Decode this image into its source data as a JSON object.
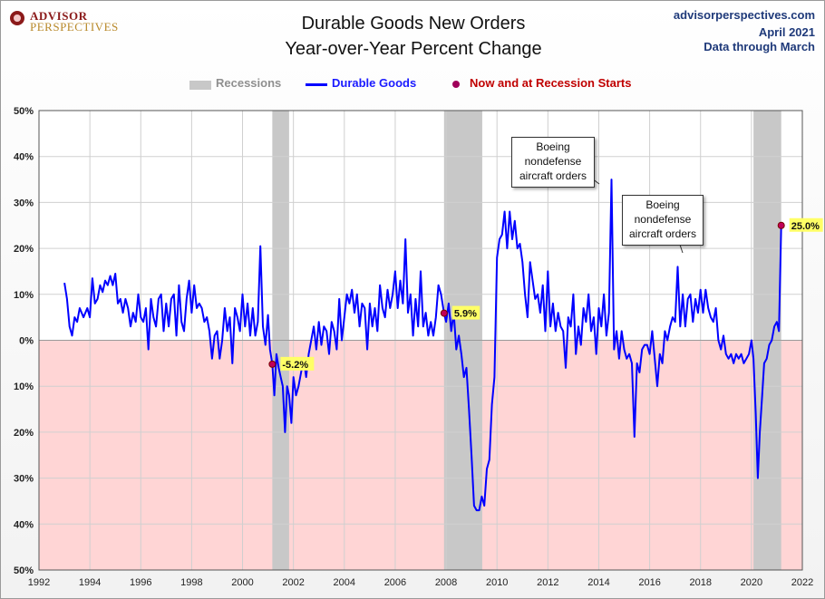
{
  "logo": {
    "line1": "ADVISOR",
    "line2": "PERSPECTIVES"
  },
  "header": {
    "title_line1": "Durable Goods New Orders",
    "title_line2": "Year-over-Year Percent Change",
    "site": "advisorperspectives.com",
    "date": "April 2021",
    "note": "Data through March"
  },
  "legend": {
    "recessions": "Recessions",
    "series": "Durable Goods",
    "points": "Now and at Recession Starts"
  },
  "callouts": [
    {
      "lines": [
        "Boeing",
        "nondefense",
        "aircraft orders"
      ]
    },
    {
      "lines": [
        "Boeing",
        "nondefense",
        "aircraft orders"
      ]
    }
  ],
  "colors": {
    "line": "#0000ff",
    "recession": "#c8c8c8",
    "negative_region": "#ffd5d5",
    "marker": "#c0005a",
    "label_bg": "#ffff66"
  },
  "chart_data": {
    "type": "line",
    "title": "Durable Goods New Orders Year-over-Year Percent Change",
    "xlim": [
      1992,
      2022
    ],
    "ylim": [
      -50,
      50
    ],
    "x_ticks": [
      1992,
      1994,
      1996,
      1998,
      2000,
      2002,
      2004,
      2006,
      2008,
      2010,
      2012,
      2014,
      2016,
      2018,
      2020,
      2022
    ],
    "y_ticks": [
      50,
      40,
      30,
      20,
      10,
      0,
      -10,
      -20,
      -30,
      -40,
      -50
    ],
    "y_tick_labels": [
      "50%",
      "40%",
      "30%",
      "20%",
      "10%",
      "0%",
      "10%",
      "20%",
      "30%",
      "40%",
      "50%"
    ],
    "grid": true,
    "recessions": [
      [
        2001.17,
        2001.83
      ],
      [
        2007.92,
        2009.42
      ],
      [
        2020.08,
        2021.17
      ]
    ],
    "series": [
      {
        "name": "Durable Goods",
        "points": [
          [
            1993.0,
            12.5
          ],
          [
            1993.1,
            9
          ],
          [
            1993.2,
            3
          ],
          [
            1993.3,
            1
          ],
          [
            1993.4,
            5
          ],
          [
            1993.5,
            4
          ],
          [
            1993.6,
            7
          ],
          [
            1993.75,
            5
          ],
          [
            1993.9,
            7
          ],
          [
            1994.0,
            5
          ],
          [
            1994.1,
            13.5
          ],
          [
            1994.2,
            8
          ],
          [
            1994.3,
            9
          ],
          [
            1994.4,
            12
          ],
          [
            1994.5,
            10.5
          ],
          [
            1994.6,
            13
          ],
          [
            1994.7,
            12
          ],
          [
            1994.8,
            14
          ],
          [
            1994.9,
            12
          ],
          [
            1995.0,
            14.5
          ],
          [
            1995.1,
            8
          ],
          [
            1995.2,
            9
          ],
          [
            1995.3,
            6
          ],
          [
            1995.4,
            9
          ],
          [
            1995.5,
            7
          ],
          [
            1995.6,
            3
          ],
          [
            1995.7,
            6
          ],
          [
            1995.8,
            4
          ],
          [
            1995.9,
            10
          ],
          [
            1996.0,
            5
          ],
          [
            1996.1,
            4
          ],
          [
            1996.2,
            7
          ],
          [
            1996.3,
            -2
          ],
          [
            1996.4,
            9
          ],
          [
            1996.5,
            5
          ],
          [
            1996.6,
            3
          ],
          [
            1996.7,
            9
          ],
          [
            1996.8,
            10
          ],
          [
            1996.9,
            2
          ],
          [
            1997.0,
            8
          ],
          [
            1997.1,
            3
          ],
          [
            1997.2,
            9
          ],
          [
            1997.3,
            10
          ],
          [
            1997.4,
            1
          ],
          [
            1997.5,
            12
          ],
          [
            1997.6,
            4
          ],
          [
            1997.7,
            2
          ],
          [
            1997.8,
            9
          ],
          [
            1997.9,
            13
          ],
          [
            1998.0,
            6
          ],
          [
            1998.1,
            12
          ],
          [
            1998.2,
            7
          ],
          [
            1998.3,
            8
          ],
          [
            1998.4,
            7
          ],
          [
            1998.5,
            4
          ],
          [
            1998.6,
            5
          ],
          [
            1998.7,
            2
          ],
          [
            1998.8,
            -4
          ],
          [
            1998.9,
            1
          ],
          [
            1999.0,
            2
          ],
          [
            1999.1,
            -4
          ],
          [
            1999.2,
            0
          ],
          [
            1999.3,
            7
          ],
          [
            1999.4,
            2
          ],
          [
            1999.5,
            5
          ],
          [
            1999.6,
            -5
          ],
          [
            1999.7,
            7
          ],
          [
            1999.8,
            5
          ],
          [
            1999.9,
            2
          ],
          [
            2000.0,
            10
          ],
          [
            2000.1,
            3
          ],
          [
            2000.2,
            8
          ],
          [
            2000.3,
            1
          ],
          [
            2000.4,
            7
          ],
          [
            2000.5,
            1
          ],
          [
            2000.6,
            4
          ],
          [
            2000.7,
            20.5
          ],
          [
            2000.8,
            3
          ],
          [
            2000.9,
            -1
          ],
          [
            2001.0,
            5.5
          ],
          [
            2001.08,
            -2
          ],
          [
            2001.17,
            -5.2
          ],
          [
            2001.25,
            -12
          ],
          [
            2001.33,
            -3
          ],
          [
            2001.42,
            -6
          ],
          [
            2001.5,
            -8
          ],
          [
            2001.58,
            -10
          ],
          [
            2001.67,
            -20
          ],
          [
            2001.75,
            -10
          ],
          [
            2001.83,
            -12
          ],
          [
            2001.92,
            -18
          ],
          [
            2002.0,
            -8
          ],
          [
            2002.1,
            -12
          ],
          [
            2002.2,
            -10
          ],
          [
            2002.3,
            -7
          ],
          [
            2002.4,
            -4
          ],
          [
            2002.5,
            -8
          ],
          [
            2002.6,
            -3
          ],
          [
            2002.7,
            0
          ],
          [
            2002.8,
            3
          ],
          [
            2002.9,
            -2
          ],
          [
            2003.0,
            4
          ],
          [
            2003.1,
            -1
          ],
          [
            2003.2,
            3
          ],
          [
            2003.3,
            2
          ],
          [
            2003.4,
            -3
          ],
          [
            2003.5,
            4
          ],
          [
            2003.6,
            2
          ],
          [
            2003.7,
            -2
          ],
          [
            2003.8,
            9
          ],
          [
            2003.9,
            0
          ],
          [
            2004.0,
            5
          ],
          [
            2004.1,
            10
          ],
          [
            2004.2,
            8
          ],
          [
            2004.3,
            11
          ],
          [
            2004.4,
            6
          ],
          [
            2004.5,
            10
          ],
          [
            2004.6,
            3
          ],
          [
            2004.7,
            8
          ],
          [
            2004.8,
            7
          ],
          [
            2004.9,
            -2
          ],
          [
            2005.0,
            8
          ],
          [
            2005.1,
            3
          ],
          [
            2005.2,
            7
          ],
          [
            2005.3,
            2
          ],
          [
            2005.4,
            12
          ],
          [
            2005.5,
            7
          ],
          [
            2005.6,
            5
          ],
          [
            2005.7,
            11
          ],
          [
            2005.8,
            7
          ],
          [
            2005.9,
            10
          ],
          [
            2006.0,
            15
          ],
          [
            2006.1,
            7
          ],
          [
            2006.2,
            13
          ],
          [
            2006.3,
            8
          ],
          [
            2006.4,
            22
          ],
          [
            2006.5,
            6
          ],
          [
            2006.6,
            10
          ],
          [
            2006.7,
            1
          ],
          [
            2006.8,
            9
          ],
          [
            2006.9,
            3
          ],
          [
            2007.0,
            15
          ],
          [
            2007.1,
            3
          ],
          [
            2007.2,
            6
          ],
          [
            2007.3,
            1
          ],
          [
            2007.4,
            4
          ],
          [
            2007.5,
            1
          ],
          [
            2007.6,
            5
          ],
          [
            2007.7,
            12
          ],
          [
            2007.8,
            10
          ],
          [
            2007.92,
            5.9
          ],
          [
            2008.0,
            4
          ],
          [
            2008.1,
            8
          ],
          [
            2008.2,
            2
          ],
          [
            2008.3,
            6
          ],
          [
            2008.4,
            -2
          ],
          [
            2008.5,
            1
          ],
          [
            2008.6,
            -3
          ],
          [
            2008.7,
            -8
          ],
          [
            2008.8,
            -6
          ],
          [
            2008.9,
            -15
          ],
          [
            2009.0,
            -25
          ],
          [
            2009.1,
            -36
          ],
          [
            2009.2,
            -37
          ],
          [
            2009.3,
            -37
          ],
          [
            2009.4,
            -34
          ],
          [
            2009.5,
            -36
          ],
          [
            2009.6,
            -28
          ],
          [
            2009.7,
            -26
          ],
          [
            2009.8,
            -14
          ],
          [
            2009.9,
            -8
          ],
          [
            2010.0,
            18
          ],
          [
            2010.1,
            22
          ],
          [
            2010.2,
            23
          ],
          [
            2010.3,
            28
          ],
          [
            2010.4,
            20
          ],
          [
            2010.5,
            28
          ],
          [
            2010.6,
            22
          ],
          [
            2010.7,
            26
          ],
          [
            2010.8,
            20
          ],
          [
            2010.9,
            21
          ],
          [
            2011.0,
            17
          ],
          [
            2011.1,
            10
          ],
          [
            2011.2,
            5
          ],
          [
            2011.3,
            17
          ],
          [
            2011.4,
            13
          ],
          [
            2011.5,
            9
          ],
          [
            2011.6,
            10
          ],
          [
            2011.7,
            6
          ],
          [
            2011.8,
            12
          ],
          [
            2011.9,
            2
          ],
          [
            2012.0,
            15
          ],
          [
            2012.1,
            3
          ],
          [
            2012.2,
            8
          ],
          [
            2012.3,
            2
          ],
          [
            2012.4,
            6
          ],
          [
            2012.5,
            3
          ],
          [
            2012.6,
            2
          ],
          [
            2012.7,
            -6
          ],
          [
            2012.8,
            5
          ],
          [
            2012.9,
            3
          ],
          [
            2013.0,
            10
          ],
          [
            2013.1,
            -3
          ],
          [
            2013.2,
            3
          ],
          [
            2013.3,
            -1
          ],
          [
            2013.4,
            7
          ],
          [
            2013.5,
            4
          ],
          [
            2013.6,
            10
          ],
          [
            2013.7,
            2
          ],
          [
            2013.8,
            5
          ],
          [
            2013.9,
            -3
          ],
          [
            2014.0,
            7
          ],
          [
            2014.1,
            3
          ],
          [
            2014.2,
            10
          ],
          [
            2014.3,
            1
          ],
          [
            2014.4,
            6
          ],
          [
            2014.5,
            35
          ],
          [
            2014.6,
            -2
          ],
          [
            2014.7,
            2
          ],
          [
            2014.8,
            -4
          ],
          [
            2014.9,
            2
          ],
          [
            2015.0,
            -2
          ],
          [
            2015.1,
            -4
          ],
          [
            2015.2,
            -3
          ],
          [
            2015.3,
            -5
          ],
          [
            2015.4,
            -21
          ],
          [
            2015.5,
            -5
          ],
          [
            2015.6,
            -7
          ],
          [
            2015.7,
            -2
          ],
          [
            2015.8,
            -1
          ],
          [
            2015.9,
            -1
          ],
          [
            2016.0,
            -3
          ],
          [
            2016.1,
            2
          ],
          [
            2016.2,
            -4
          ],
          [
            2016.3,
            -10
          ],
          [
            2016.4,
            -3
          ],
          [
            2016.5,
            -5
          ],
          [
            2016.6,
            2
          ],
          [
            2016.7,
            0
          ],
          [
            2016.8,
            3
          ],
          [
            2016.9,
            5
          ],
          [
            2017.0,
            4
          ],
          [
            2017.1,
            16
          ],
          [
            2017.2,
            3
          ],
          [
            2017.3,
            10
          ],
          [
            2017.4,
            3
          ],
          [
            2017.5,
            9
          ],
          [
            2017.6,
            10
          ],
          [
            2017.7,
            4
          ],
          [
            2017.8,
            9
          ],
          [
            2017.9,
            6
          ],
          [
            2018.0,
            11
          ],
          [
            2018.1,
            6
          ],
          [
            2018.2,
            11
          ],
          [
            2018.3,
            7
          ],
          [
            2018.4,
            5
          ],
          [
            2018.5,
            4
          ],
          [
            2018.6,
            7
          ],
          [
            2018.7,
            0
          ],
          [
            2018.8,
            -2
          ],
          [
            2018.9,
            1
          ],
          [
            2019.0,
            -3
          ],
          [
            2019.1,
            -4
          ],
          [
            2019.2,
            -3
          ],
          [
            2019.3,
            -5
          ],
          [
            2019.4,
            -3
          ],
          [
            2019.5,
            -4
          ],
          [
            2019.6,
            -3
          ],
          [
            2019.7,
            -5
          ],
          [
            2019.8,
            -4
          ],
          [
            2019.9,
            -3
          ],
          [
            2020.0,
            0
          ],
          [
            2020.08,
            -4
          ],
          [
            2020.17,
            -16
          ],
          [
            2020.25,
            -30
          ],
          [
            2020.33,
            -20
          ],
          [
            2020.42,
            -12
          ],
          [
            2020.5,
            -5
          ],
          [
            2020.6,
            -4
          ],
          [
            2020.7,
            -1
          ],
          [
            2020.8,
            0
          ],
          [
            2020.9,
            3
          ],
          [
            2021.0,
            4
          ],
          [
            2021.08,
            2
          ],
          [
            2021.17,
            25.0
          ]
        ]
      }
    ],
    "labels": [
      {
        "x": 2001.17,
        "y": -5.2,
        "text": "-5.2%"
      },
      {
        "x": 2007.92,
        "y": 5.9,
        "text": "5.9%"
      },
      {
        "x": 2021.17,
        "y": 25.0,
        "text": "25.0%"
      }
    ]
  }
}
